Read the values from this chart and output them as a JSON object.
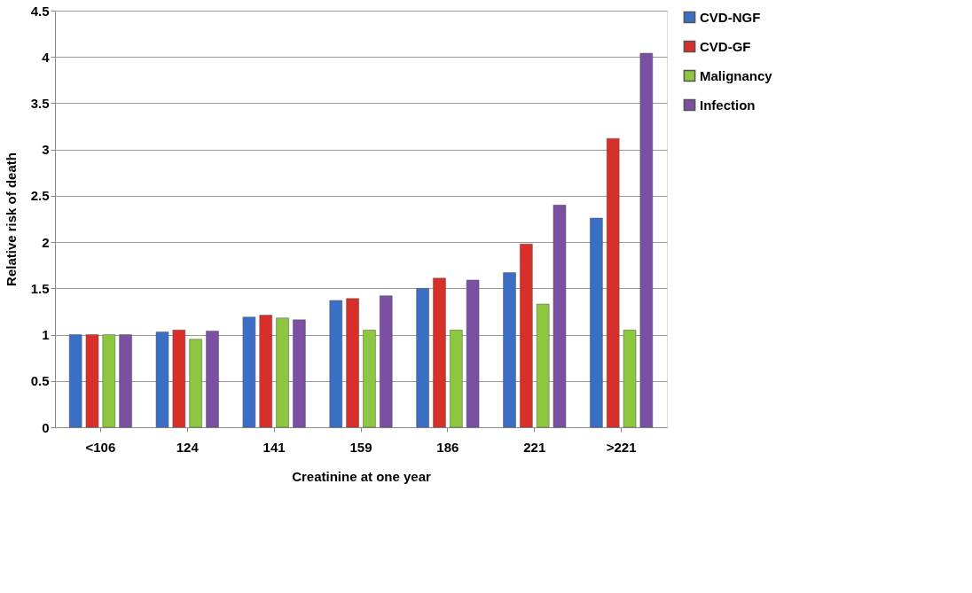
{
  "chart_data": {
    "type": "bar",
    "xlabel": "Creatinine at one year",
    "ylabel": "Relative risk of death",
    "categories": [
      "<106",
      "124",
      "141",
      "159",
      "186",
      "221",
      ">221"
    ],
    "series": [
      {
        "name": "CVD-NGF",
        "color": "#3b6fc6",
        "values": [
          1.0,
          1.03,
          1.19,
          1.37,
          1.5,
          1.67,
          2.26
        ]
      },
      {
        "name": "CVD-GF",
        "color": "#d7302b",
        "values": [
          1.0,
          1.05,
          1.21,
          1.39,
          1.61,
          1.98,
          3.12
        ]
      },
      {
        "name": "Malignancy",
        "color": "#8dc63f",
        "values": [
          1.0,
          0.95,
          1.18,
          1.05,
          1.05,
          1.33,
          1.05
        ]
      },
      {
        "name": "Infection",
        "color": "#7b4fa1",
        "values": [
          1.0,
          1.04,
          1.16,
          1.42,
          1.59,
          2.4,
          4.04
        ]
      }
    ],
    "ylim": [
      0,
      4.5
    ],
    "yticks": [
      0,
      0.5,
      1,
      1.5,
      2,
      2.5,
      3,
      3.5,
      4,
      4.5
    ],
    "grid": "y",
    "legend": "right"
  }
}
